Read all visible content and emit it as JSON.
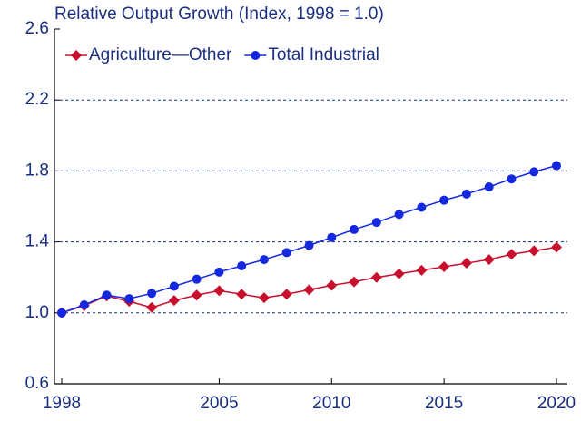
{
  "chart_data": {
    "type": "line",
    "title": "Relative Output Growth (Index, 1998 = 1.0)",
    "x": [
      1998,
      1999,
      2000,
      2001,
      2002,
      2003,
      2004,
      2005,
      2006,
      2007,
      2008,
      2009,
      2010,
      2011,
      2012,
      2013,
      2014,
      2015,
      2016,
      2017,
      2018,
      2019,
      2020
    ],
    "series": [
      {
        "name": "Agriculture—Other",
        "color": "#c8102e",
        "marker": "diamond",
        "values": [
          1.0,
          1.04,
          1.095,
          1.065,
          1.03,
          1.07,
          1.1,
          1.125,
          1.105,
          1.085,
          1.105,
          1.13,
          1.155,
          1.175,
          1.2,
          1.22,
          1.24,
          1.26,
          1.28,
          1.3,
          1.33,
          1.35,
          1.37
        ]
      },
      {
        "name": "Total Industrial",
        "color": "#1428e0",
        "marker": "circle",
        "values": [
          1.0,
          1.045,
          1.1,
          1.08,
          1.11,
          1.15,
          1.19,
          1.23,
          1.265,
          1.3,
          1.34,
          1.38,
          1.425,
          1.47,
          1.51,
          1.555,
          1.595,
          1.635,
          1.67,
          1.71,
          1.755,
          1.795,
          1.83
        ]
      }
    ],
    "xlim": [
      1998,
      2020
    ],
    "xticks": [
      1998,
      2005,
      2010,
      2015,
      2020
    ],
    "ylim": [
      0.6,
      2.6
    ],
    "yticks": [
      0.6,
      {
        "value": 1,
        "label": "1.0"
      },
      1.4,
      1.8,
      2.2,
      2.6
    ],
    "grid": true,
    "legend": "top-left"
  }
}
